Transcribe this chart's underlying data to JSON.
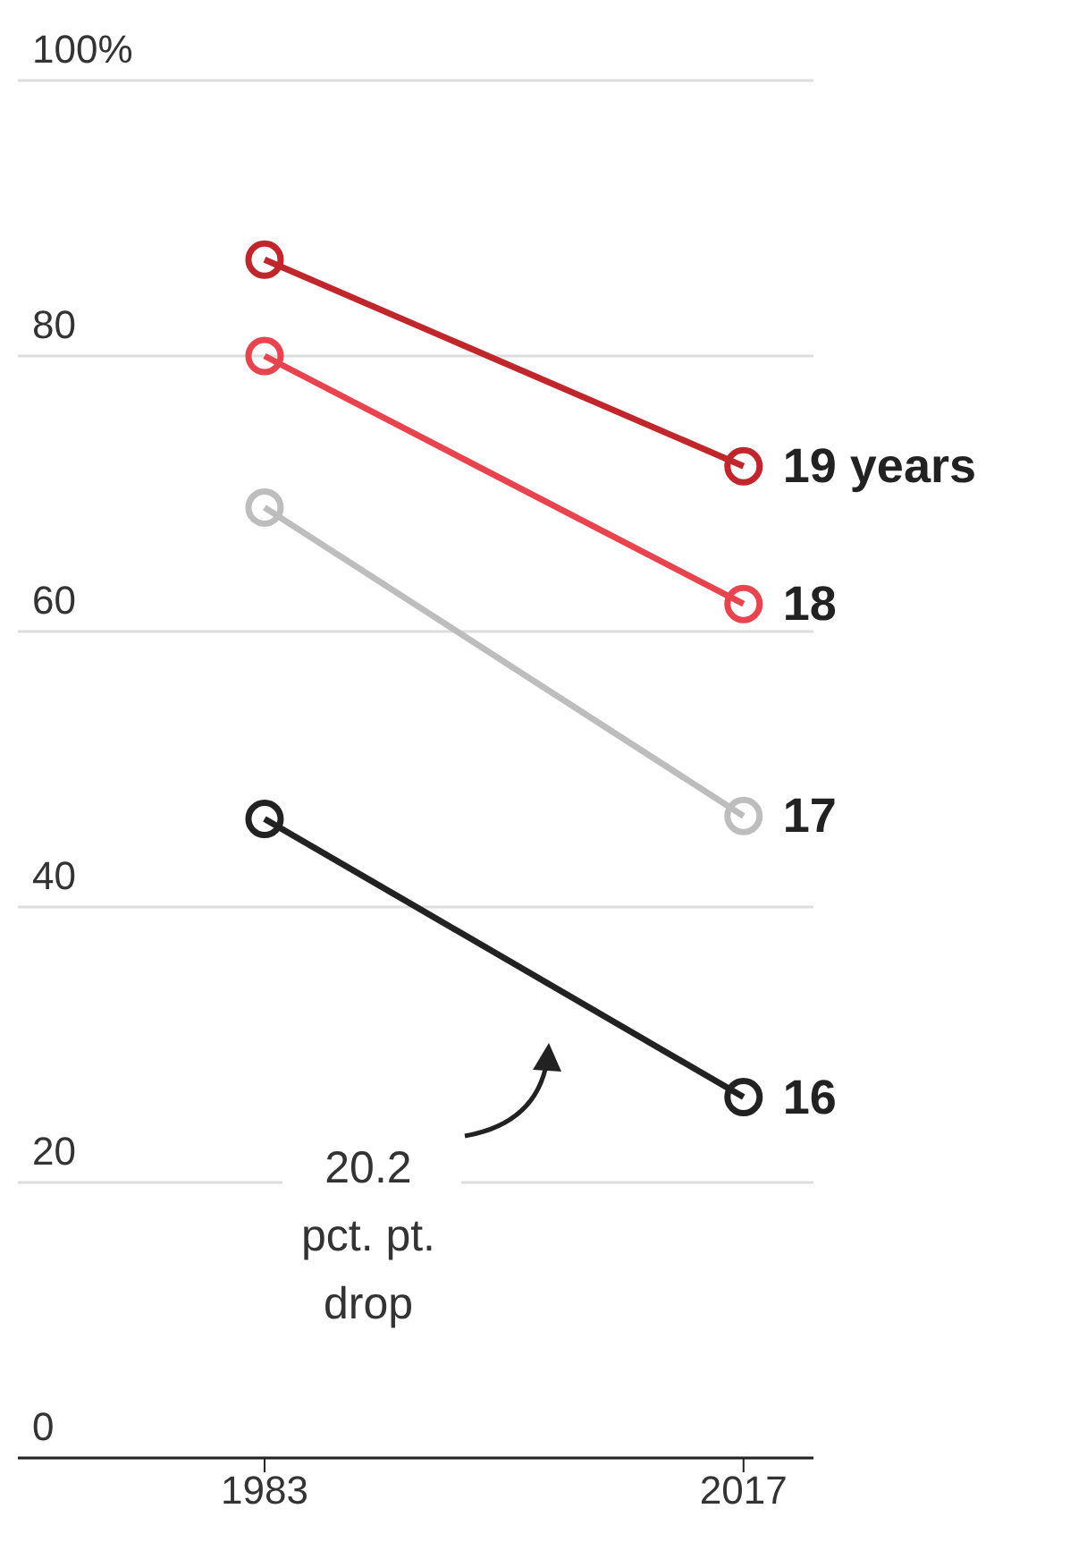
{
  "chart_data": {
    "type": "line",
    "categories": [
      "1983",
      "2017"
    ],
    "series": [
      {
        "name": "19 years",
        "color": "#c0272d",
        "values": [
          87,
          72
        ]
      },
      {
        "name": "18",
        "color": "#e8444f",
        "values": [
          80,
          62
        ]
      },
      {
        "name": "17",
        "color": "#bdbdbd",
        "values": [
          69,
          46.6
        ]
      },
      {
        "name": "16",
        "color": "#222222",
        "values": [
          46.4,
          26.2
        ]
      }
    ],
    "ylim": [
      0,
      100
    ],
    "yticks": [
      0,
      20,
      40,
      60,
      80,
      {
        "value": 100,
        "label": "100%"
      }
    ],
    "grid": "y",
    "marker": "circle",
    "line_style": "solid",
    "annotations": [
      "20.2\npct. pt.\ndrop"
    ]
  }
}
